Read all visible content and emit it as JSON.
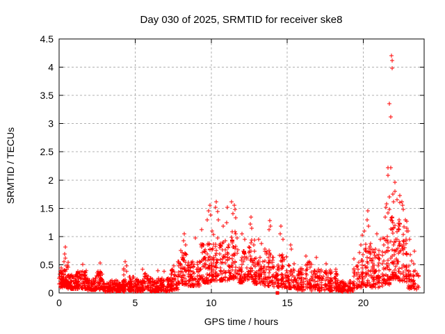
{
  "chart_data": {
    "type": "scatter",
    "title": "Day 030 of 2025, SRMTID for receiver ske8",
    "xlabel": "GPS time / hours",
    "ylabel": "SRMTID / TECUs",
    "xlim": [
      0,
      24
    ],
    "ylim": [
      0,
      4.5
    ],
    "xticks": [
      0,
      5,
      10,
      15,
      20
    ],
    "xtick_labels": [
      "0",
      "5",
      "10",
      "15",
      "20"
    ],
    "yticks": [
      0,
      0.5,
      1,
      1.5,
      2,
      2.5,
      3,
      3.5,
      4,
      4.5
    ],
    "ytick_labels": [
      "0",
      "0.5",
      "1",
      "1.5",
      "2",
      "2.5",
      "3",
      "3.5",
      "4",
      "4.5"
    ],
    "grid": true,
    "grid_style": "dashed",
    "legend": "none",
    "marker": "plus-cross",
    "marker_color": "#ff0000",
    "grid_color": "#b0b0b0",
    "axis_color": "#000000",
    "background_color": "#ffffff",
    "series_name": "SRMTID",
    "density_bands_note": "dense noisy band; each entry = [hour_start, hour_end, tecu_min, tecu_max, approx_point_count]",
    "density_bands": [
      [
        0.0,
        0.3,
        0.1,
        0.45,
        40
      ],
      [
        0.3,
        0.6,
        0.1,
        0.6,
        45
      ],
      [
        0.6,
        1.2,
        0.07,
        0.32,
        75
      ],
      [
        1.2,
        1.8,
        0.07,
        0.4,
        75
      ],
      [
        1.8,
        2.4,
        0.05,
        0.26,
        70
      ],
      [
        2.4,
        2.9,
        0.06,
        0.42,
        55
      ],
      [
        2.9,
        4.3,
        0.03,
        0.22,
        155
      ],
      [
        4.2,
        4.5,
        0.12,
        0.5,
        15
      ],
      [
        4.5,
        5.6,
        0.03,
        0.28,
        120
      ],
      [
        5.6,
        5.9,
        0.05,
        0.35,
        25
      ],
      [
        5.9,
        7.3,
        0.03,
        0.26,
        150
      ],
      [
        7.3,
        7.8,
        0.05,
        0.42,
        50
      ],
      [
        7.8,
        8.5,
        0.15,
        0.75,
        70
      ],
      [
        8.5,
        9.3,
        0.12,
        0.58,
        78
      ],
      [
        9.3,
        10.0,
        0.18,
        0.88,
        70
      ],
      [
        10.0,
        10.6,
        0.22,
        1.1,
        60
      ],
      [
        10.6,
        11.2,
        0.22,
        0.95,
        62
      ],
      [
        11.2,
        11.75,
        0.25,
        1.1,
        55
      ],
      [
        11.75,
        12.4,
        0.18,
        0.78,
        62
      ],
      [
        12.4,
        12.85,
        0.2,
        0.95,
        45
      ],
      [
        12.85,
        13.5,
        0.15,
        0.68,
        62
      ],
      [
        13.5,
        14.1,
        0.12,
        0.78,
        58
      ],
      [
        14.1,
        14.45,
        0.1,
        0.5,
        30
      ],
      [
        14.45,
        15.05,
        0.1,
        0.68,
        55
      ],
      [
        15.05,
        15.5,
        0.08,
        0.52,
        40
      ],
      [
        15.5,
        16.2,
        0.05,
        0.45,
        62
      ],
      [
        16.2,
        16.6,
        0.08,
        0.55,
        35
      ],
      [
        16.6,
        18.5,
        0.04,
        0.42,
        165
      ],
      [
        18.5,
        19.35,
        0.03,
        0.22,
        72
      ],
      [
        19.35,
        19.95,
        0.08,
        0.6,
        50
      ],
      [
        19.95,
        20.5,
        0.12,
        0.88,
        52
      ],
      [
        20.5,
        21.3,
        0.1,
        0.78,
        72
      ],
      [
        21.3,
        21.75,
        0.15,
        1.05,
        52
      ],
      [
        21.75,
        22.3,
        0.25,
        1.35,
        72
      ],
      [
        22.3,
        22.9,
        0.2,
        1.3,
        66
      ],
      [
        22.9,
        23.4,
        0.08,
        0.75,
        40
      ],
      [
        23.4,
        23.65,
        0.05,
        0.35,
        10
      ]
    ],
    "peak_points_note": "distinct visible spike points [hour, TECU]",
    "peak_points": [
      [
        0.38,
        0.69
      ],
      [
        0.4,
        0.81
      ],
      [
        0.42,
        0.62
      ],
      [
        1.55,
        0.5
      ],
      [
        2.68,
        0.53
      ],
      [
        4.32,
        0.55
      ],
      [
        5.5,
        0.42
      ],
      [
        6.5,
        0.4
      ],
      [
        6.9,
        0.38
      ],
      [
        7.55,
        0.48
      ],
      [
        8.18,
        0.92
      ],
      [
        8.25,
        1.05
      ],
      [
        8.3,
        0.85
      ],
      [
        8.95,
        0.97
      ],
      [
        9.35,
        1.12
      ],
      [
        9.75,
        1.3
      ],
      [
        9.85,
        1.45
      ],
      [
        9.92,
        1.55
      ],
      [
        9.95,
        1.38
      ],
      [
        10.3,
        1.52
      ],
      [
        10.35,
        1.62
      ],
      [
        10.4,
        1.44
      ],
      [
        10.45,
        1.3
      ],
      [
        10.8,
        1.18
      ],
      [
        11.0,
        1.25
      ],
      [
        11.05,
        1.52
      ],
      [
        11.35,
        1.62
      ],
      [
        11.45,
        1.4
      ],
      [
        11.5,
        1.55
      ],
      [
        11.55,
        1.48
      ],
      [
        11.6,
        1.33
      ],
      [
        12.0,
        1.05
      ],
      [
        12.2,
        0.95
      ],
      [
        12.55,
        1.22
      ],
      [
        12.6,
        1.35
      ],
      [
        12.65,
        1.15
      ],
      [
        13.1,
        0.95
      ],
      [
        13.3,
        0.88
      ],
      [
        13.8,
        1.12
      ],
      [
        13.85,
        1.28
      ],
      [
        13.9,
        1.18
      ],
      [
        14.55,
        1.05
      ],
      [
        14.6,
        1.18
      ],
      [
        14.7,
        0.95
      ],
      [
        15.2,
        0.85
      ],
      [
        15.25,
        0.78
      ],
      [
        16.25,
        0.65
      ],
      [
        16.9,
        0.63
      ],
      [
        17.55,
        0.52
      ],
      [
        19.75,
        0.71
      ],
      [
        19.85,
        0.85
      ],
      [
        19.95,
        1.02
      ],
      [
        20.05,
        1.1
      ],
      [
        20.25,
        1.3
      ],
      [
        20.3,
        1.45
      ],
      [
        20.35,
        1.18
      ],
      [
        20.9,
        1.05
      ],
      [
        21.1,
        0.95
      ],
      [
        21.45,
        1.35
      ],
      [
        21.5,
        1.52
      ],
      [
        21.55,
        1.58
      ],
      [
        21.6,
        1.42
      ],
      [
        21.7,
        1.7
      ],
      [
        21.7,
        1.48
      ],
      [
        21.6,
        2.22
      ],
      [
        21.82,
        2.22
      ],
      [
        21.6,
        2.08
      ],
      [
        22.08,
        1.96
      ],
      [
        21.85,
        4.2
      ],
      [
        21.88,
        4.12
      ],
      [
        21.9,
        3.98
      ],
      [
        21.7,
        3.35
      ],
      [
        21.8,
        3.12
      ],
      [
        21.95,
        1.75
      ],
      [
        22.0,
        1.62
      ],
      [
        22.1,
        1.8
      ],
      [
        22.2,
        1.65
      ],
      [
        22.4,
        1.72
      ],
      [
        22.4,
        1.6
      ],
      [
        22.55,
        1.62
      ],
      [
        22.6,
        1.55
      ],
      [
        22.65,
        1.48
      ],
      [
        22.75,
        1.3
      ],
      [
        22.95,
        1.1
      ],
      [
        23.05,
        0.95
      ]
    ],
    "flagged_points_note": "solid filled square marker sitting on the zero line",
    "flagged_points": [
      {
        "x": 14.35,
        "y": 0.0,
        "marker": "filled-square"
      }
    ]
  }
}
